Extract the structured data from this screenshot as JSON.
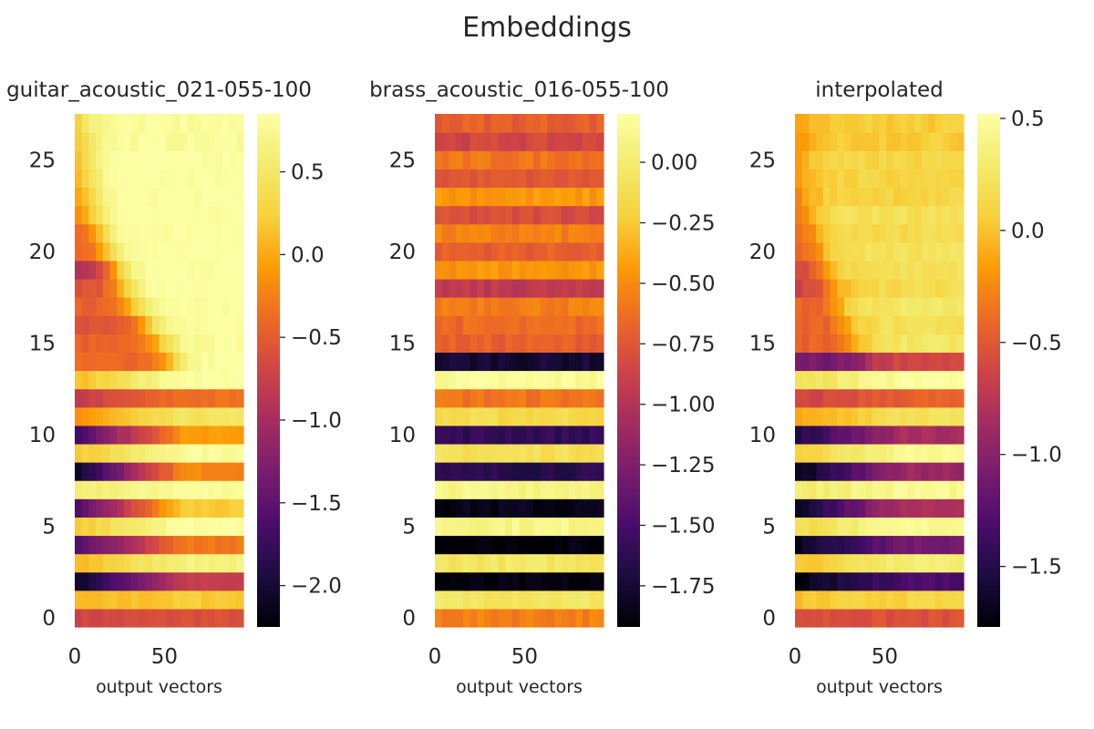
{
  "chart_data": {
    "type": "heatmap",
    "title": "Embeddings",
    "colormap": "inferno",
    "grid": false,
    "panels": [
      {
        "title": "guitar_acoustic_021-055-100",
        "xlabel": "output vectors",
        "ylabel": "",
        "x_ticks": [
          0,
          50
        ],
        "y_ticks": [
          0,
          5,
          10,
          15,
          20,
          25
        ],
        "x_range": [
          0,
          94
        ],
        "y_range": [
          0,
          28
        ],
        "colorbar": {
          "range": [
            -2.25,
            0.85
          ],
          "ticks": [
            0.5,
            0.0,
            -0.5,
            -1.0,
            -1.5,
            -2.0
          ],
          "tick_labels": [
            "0.5",
            "0.0",
            "−0.5",
            "−1.0",
            "−1.5",
            "−2.0"
          ]
        },
        "row_values_start": [
          -0.7,
          0.05,
          -2.1,
          0.05,
          -1.65,
          0.15,
          -1.7,
          0.55,
          -2.1,
          0.15,
          -1.7,
          -0.15,
          -0.8,
          0.1,
          -0.4,
          -0.45,
          -0.55,
          -0.45,
          -0.6,
          -1.0,
          -0.5,
          -0.5,
          -0.25,
          -0.25,
          -0.2,
          -0.2,
          -0.2,
          -0.1
        ],
        "row_values_end": [
          -0.6,
          0.2,
          -0.8,
          0.65,
          -0.3,
          0.85,
          0.2,
          0.8,
          -0.2,
          0.8,
          -0.1,
          0.45,
          -0.35,
          0.85,
          0.85,
          0.8,
          0.8,
          0.85,
          0.85,
          0.85,
          0.85,
          0.85,
          0.85,
          0.85,
          0.85,
          0.85,
          0.8,
          0.8
        ],
        "row_transition_x": [
          0,
          0,
          0,
          0,
          0,
          0,
          0,
          0,
          0,
          0,
          0,
          0,
          0,
          0,
          55,
          48,
          40,
          33,
          27,
          22,
          18,
          14,
          11,
          9,
          7,
          5,
          4,
          3
        ]
      },
      {
        "title": "brass_acoustic_016-055-100",
        "xlabel": "output vectors",
        "ylabel": "",
        "x_ticks": [
          0,
          50
        ],
        "y_ticks": [
          0,
          5,
          10,
          15,
          20,
          25
        ],
        "x_range": [
          0,
          94
        ],
        "y_range": [
          0,
          28
        ],
        "colorbar": {
          "range": [
            -1.92,
            0.2
          ],
          "ticks": [
            0.0,
            -0.25,
            -0.5,
            -0.75,
            -1.0,
            -1.25,
            -1.5,
            -1.75
          ],
          "tick_labels": [
            "0.00",
            "−0.25",
            "−0.50",
            "−0.75",
            "−1.00",
            "−1.25",
            "−1.50",
            "−1.75"
          ]
        },
        "row_values": [
          -0.55,
          -0.05,
          -1.9,
          -0.05,
          -1.9,
          0.1,
          -1.85,
          0.1,
          -1.65,
          -0.1,
          -1.6,
          -0.15,
          -0.6,
          0.15,
          -1.75,
          -0.7,
          -0.65,
          -0.55,
          -0.95,
          -0.45,
          -0.7,
          -0.55,
          -0.8,
          -0.45,
          -0.75,
          -0.6,
          -0.85,
          -0.7
        ]
      },
      {
        "title": "interpolated",
        "xlabel": "output vectors",
        "ylabel": "",
        "x_ticks": [
          0,
          50
        ],
        "y_ticks": [
          0,
          5,
          10,
          15,
          20,
          25
        ],
        "x_range": [
          0,
          94
        ],
        "y_range": [
          0,
          28
        ],
        "colorbar": {
          "range": [
            -1.77,
            0.52
          ],
          "ticks": [
            0.5,
            0.0,
            -0.5,
            -1.0,
            -1.5
          ],
          "tick_labels": [
            "0.5",
            "0.0",
            "−0.5",
            "−1.0",
            "−1.5"
          ]
        },
        "row_values_start": [
          -0.55,
          0.0,
          -1.75,
          0.0,
          -1.7,
          0.15,
          -1.65,
          0.3,
          -1.75,
          0.05,
          -1.55,
          -0.15,
          -0.65,
          0.15,
          -1.1,
          -0.45,
          -0.45,
          -0.45,
          -0.65,
          -0.6,
          -0.5,
          -0.45,
          -0.45,
          -0.35,
          -0.35,
          -0.3,
          -0.4,
          -0.3
        ],
        "row_values_end": [
          -0.55,
          0.1,
          -1.3,
          0.35,
          -1.1,
          0.45,
          -0.8,
          0.45,
          -0.9,
          0.45,
          -0.85,
          0.2,
          -0.45,
          0.5,
          -0.6,
          0.25,
          0.2,
          0.25,
          0.15,
          0.2,
          0.2,
          0.15,
          0.2,
          0.1,
          0.1,
          0.1,
          0.05,
          0.05
        ],
        "row_transition_x": [
          0,
          0,
          0,
          0,
          0,
          0,
          0,
          0,
          0,
          0,
          0,
          0,
          0,
          0,
          40,
          35,
          30,
          25,
          21,
          17,
          14,
          11,
          9,
          7,
          5,
          4,
          3,
          2
        ]
      }
    ]
  }
}
